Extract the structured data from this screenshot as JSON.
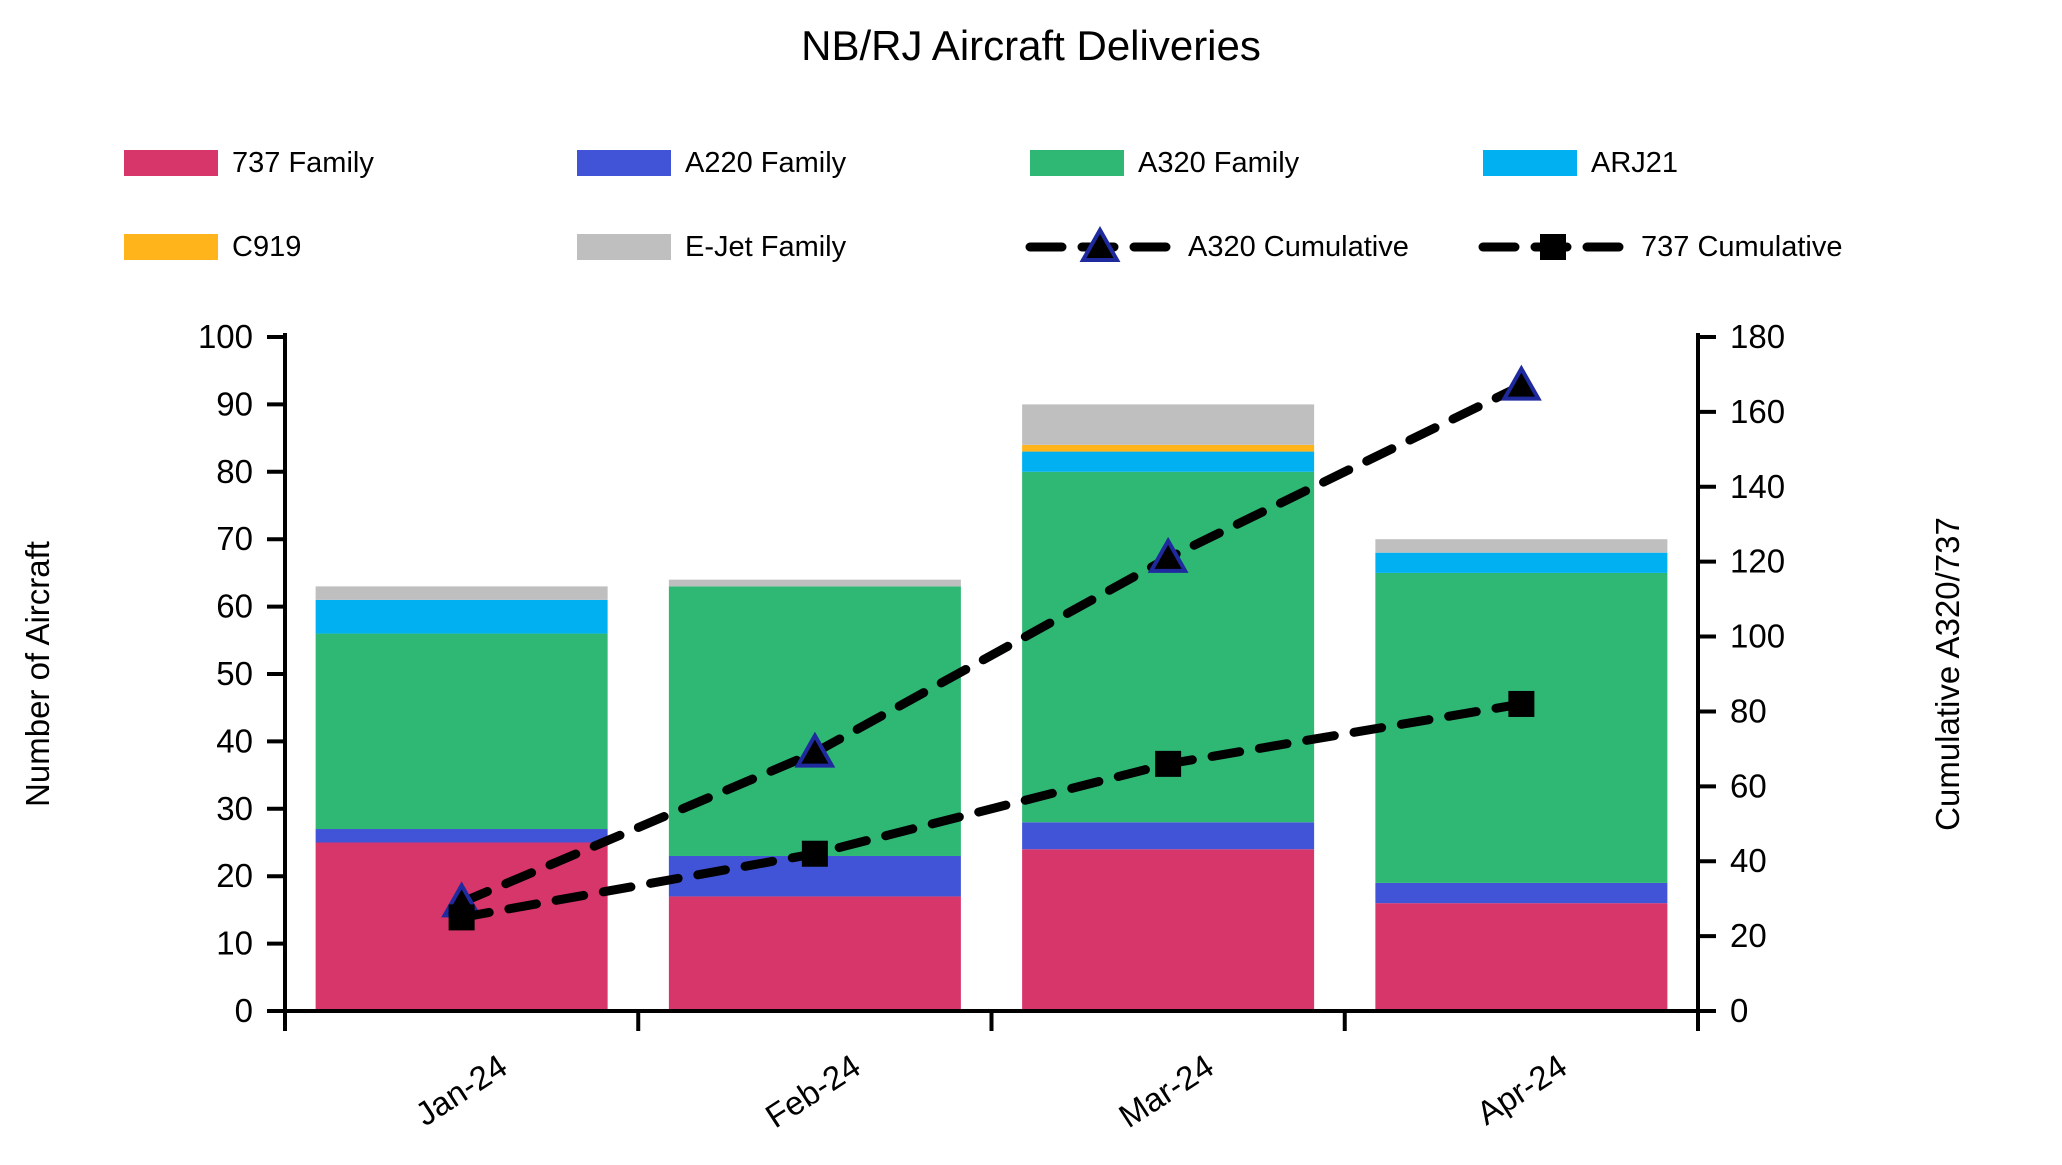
{
  "title": "NB/RJ Aircraft Deliveries",
  "chart_data": {
    "type": "combo",
    "categories": [
      "Jan-24",
      "Feb-24",
      "Mar-24",
      "Apr-24"
    ],
    "bar_series": [
      {
        "name": "737 Family",
        "color": "#D6366A",
        "values": [
          25,
          17,
          24,
          16
        ]
      },
      {
        "name": "A220 Family",
        "color": "#4153D6",
        "values": [
          2,
          6,
          4,
          3
        ]
      },
      {
        "name": "A320 Family",
        "color": "#2FB873",
        "values": [
          29,
          40,
          52,
          46
        ]
      },
      {
        "name": "ARJ21",
        "color": "#00B0F0",
        "values": [
          5,
          0,
          3,
          3
        ]
      },
      {
        "name": "C919",
        "color": "#FFB41C",
        "values": [
          0,
          0,
          1,
          0
        ]
      },
      {
        "name": "E-Jet Family",
        "color": "#BFBFBF",
        "values": [
          2,
          1,
          6,
          2
        ]
      }
    ],
    "line_series": [
      {
        "name": "A320 Cumulative",
        "color": "#000000",
        "marker": "triangle",
        "marker_fill": "#000000",
        "marker_stroke": "#1F2A9E",
        "values": [
          29,
          69,
          121,
          167
        ]
      },
      {
        "name": "737 Cumulative",
        "color": "#000000",
        "marker": "square",
        "marker_fill": "#000000",
        "marker_stroke": "#000000",
        "values": [
          25,
          42,
          66,
          82
        ]
      }
    ],
    "left_axis": {
      "label": "Number of Aircraft",
      "min": 0,
      "max": 100,
      "step": 10,
      "ticks": [
        0,
        10,
        20,
        30,
        40,
        50,
        60,
        70,
        80,
        90,
        100
      ]
    },
    "right_axis": {
      "label": "Cumulative A320/737",
      "min": 0,
      "max": 180,
      "step": 20,
      "ticks": [
        0,
        20,
        40,
        60,
        80,
        100,
        120,
        140,
        160,
        180
      ]
    },
    "axis_color": "#000000",
    "legend_position": "top",
    "grid": "off"
  }
}
